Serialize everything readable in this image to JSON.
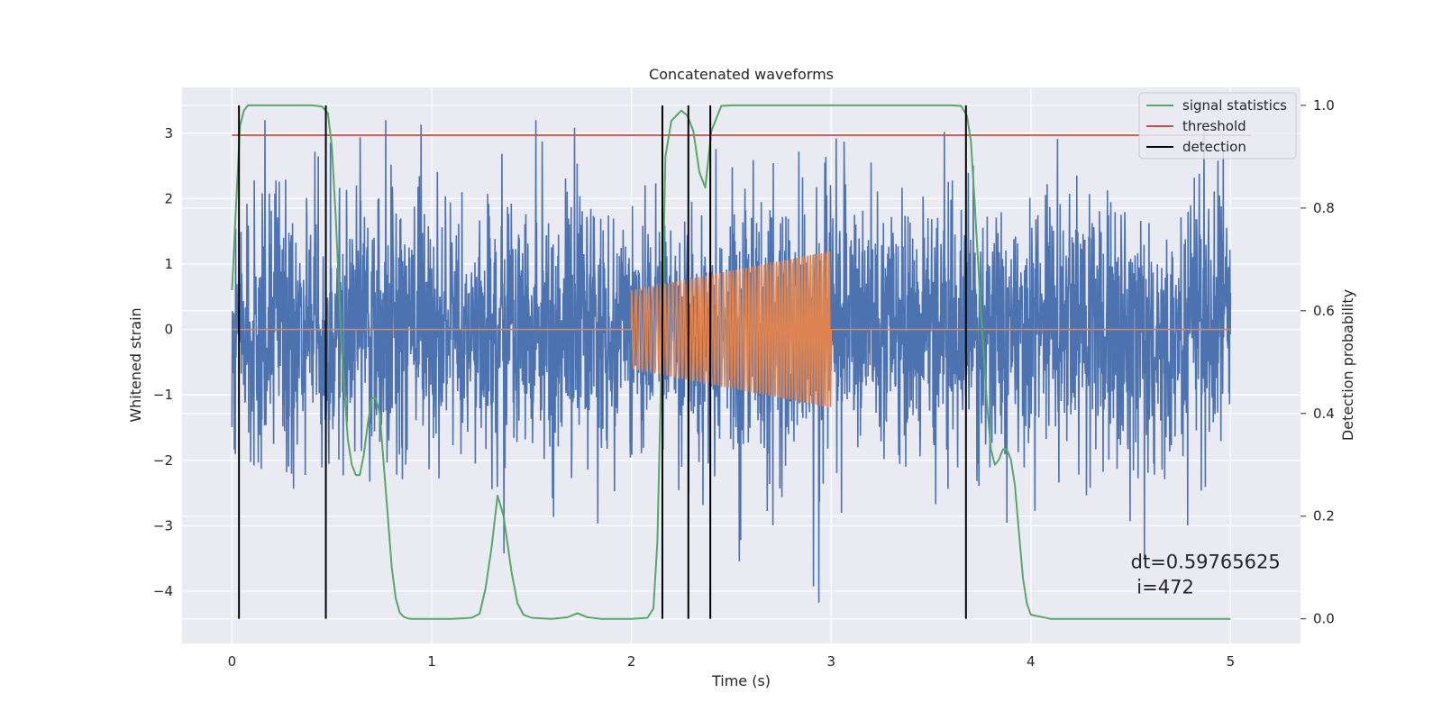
{
  "chart_data": {
    "type": "line",
    "title": "Concatenated waveforms",
    "xlabel": "Time (s)",
    "ylabel": "Whitened strain",
    "y2label": "Detection probability",
    "xlim": [
      -0.25,
      5.35
    ],
    "ylim": [
      -4.8,
      3.7
    ],
    "y2lim": [
      -0.048,
      1.035
    ],
    "xticks": [
      0,
      1,
      2,
      3,
      4,
      5
    ],
    "yticks": [
      -4,
      -3,
      -2,
      -1,
      0,
      1,
      2,
      3
    ],
    "y2ticks": [
      0.0,
      0.2,
      0.4,
      0.6,
      0.8,
      1.0
    ],
    "xtick_labels": [
      "0",
      "1",
      "2",
      "3",
      "4",
      "5"
    ],
    "ytick_labels": [
      "−4",
      "−3",
      "−2",
      "−1",
      "0",
      "1",
      "2",
      "3"
    ],
    "y2tick_labels": [
      "0.0",
      "0.2",
      "0.4",
      "0.6",
      "0.8",
      "1.0"
    ],
    "grid": true,
    "legend_position": "top-right",
    "colors": {
      "background": "#eaeaf2",
      "grid": "#ffffff",
      "noise": "#4c72b0",
      "injection": "#dd8452",
      "signal_statistics": "#55a868",
      "threshold": "#c44e52",
      "detection": "#000000"
    },
    "legend": [
      {
        "label": "signal statistics",
        "color": "#55a868"
      },
      {
        "label": "threshold",
        "color": "#c44e52"
      },
      {
        "label": "detection",
        "color": "#000000"
      }
    ],
    "annotation": {
      "line1": "dt=0.59765625",
      "line2": " i=472",
      "x": 4.5,
      "y": -3.65
    },
    "noise": {
      "x_start": 0,
      "x_end": 5,
      "typical_amplitude": 1.6,
      "spike_max": 3.2,
      "spike_min": -4.4
    },
    "injection": {
      "x_start": 2.0,
      "x_end": 3.0,
      "amplitude_start": 0.6,
      "amplitude_end": 1.2,
      "cycles": 45
    },
    "threshold_y": 2.97,
    "threshold_x": [
      0,
      5.1
    ],
    "detections_x": [
      0.035,
      0.47,
      2.155,
      2.285,
      2.395,
      3.675
    ],
    "detection_y_range": [
      0,
      1.0
    ],
    "signal_statistics": {
      "x": [
        0,
        0.02,
        0.04,
        0.06,
        0.08,
        0.1,
        0.2,
        0.3,
        0.4,
        0.45,
        0.48,
        0.5,
        0.52,
        0.55,
        0.58,
        0.6,
        0.62,
        0.64,
        0.66,
        0.68,
        0.7,
        0.72,
        0.74,
        0.76,
        0.78,
        0.8,
        0.82,
        0.84,
        0.86,
        0.88,
        0.9,
        1.0,
        1.1,
        1.2,
        1.24,
        1.27,
        1.3,
        1.33,
        1.36,
        1.4,
        1.43,
        1.46,
        1.5,
        1.6,
        1.68,
        1.73,
        1.78,
        1.85,
        2.0,
        2.08,
        2.11,
        2.13,
        2.15,
        2.17,
        2.2,
        2.25,
        2.28,
        2.31,
        2.34,
        2.37,
        2.4,
        2.45,
        2.5,
        3.0,
        3.5,
        3.6,
        3.65,
        3.68,
        3.7,
        3.72,
        3.75,
        3.78,
        3.8,
        3.82,
        3.84,
        3.86,
        3.88,
        3.9,
        3.92,
        3.94,
        3.96,
        3.98,
        4.0,
        4.1,
        4.5,
        5.0
      ],
      "y": [
        0.64,
        0.8,
        0.96,
        0.99,
        1.0,
        1.0,
        1.0,
        1.0,
        1.0,
        0.998,
        0.985,
        0.92,
        0.78,
        0.52,
        0.35,
        0.3,
        0.28,
        0.28,
        0.32,
        0.38,
        0.43,
        0.43,
        0.4,
        0.3,
        0.2,
        0.1,
        0.04,
        0.012,
        0.004,
        0.001,
        0.0,
        0.0,
        0.0,
        0.002,
        0.01,
        0.06,
        0.14,
        0.24,
        0.2,
        0.09,
        0.03,
        0.008,
        0.002,
        0.0,
        0.003,
        0.011,
        0.003,
        0.0,
        0.0,
        0.002,
        0.02,
        0.15,
        0.5,
        0.9,
        0.97,
        0.99,
        0.98,
        0.95,
        0.87,
        0.84,
        0.95,
        0.999,
        1.0,
        1.0,
        1.0,
        1.0,
        0.999,
        0.98,
        0.93,
        0.8,
        0.6,
        0.42,
        0.33,
        0.3,
        0.31,
        0.33,
        0.33,
        0.31,
        0.26,
        0.17,
        0.08,
        0.03,
        0.008,
        0.0,
        0.0,
        0.0
      ]
    }
  }
}
